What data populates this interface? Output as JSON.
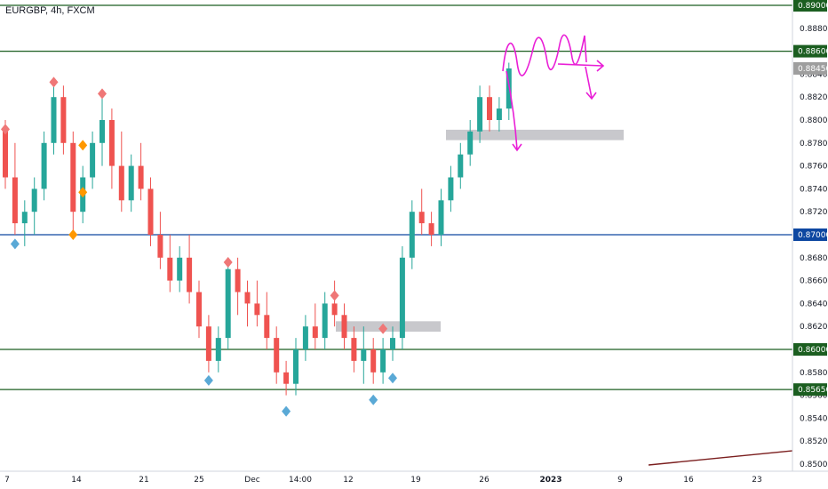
{
  "header": {
    "title": "EURGBP, 4h, FXCM"
  },
  "colors": {
    "up": "#26a69a",
    "down": "#ef5350",
    "support_resistance": "#1b5e20",
    "mid_level": "#0d47a1",
    "zone": "#c8c8cc",
    "annotation": "#e91ed6",
    "trendline": "#7b1f1f",
    "marker_red": "#ef7777",
    "marker_orange": "#ff9800",
    "marker_blue": "#5aa9d6",
    "price_badge": "#9e9e9e"
  },
  "chart_data": {
    "type": "candlestick",
    "title": "EURGBP, 4h, FXCM",
    "ylim": [
      0.85,
      0.89
    ],
    "y_ticks": [
      "0.85000",
      "0.85200",
      "0.85400",
      "0.85600",
      "0.85800",
      "0.86000",
      "0.86200",
      "0.86400",
      "0.86600",
      "0.86800",
      "0.87000",
      "0.87200",
      "0.87400",
      "0.87600",
      "0.87800",
      "0.88000",
      "0.88200",
      "0.88400",
      "0.88600",
      "0.88800",
      "0.89000"
    ],
    "x_ticks": [
      "7",
      "14",
      "21",
      "25",
      "Dec",
      "14:00",
      "12",
      "19",
      "26",
      "2023",
      "9",
      "16",
      "23"
    ],
    "levels": [
      {
        "price": 0.89,
        "label": "0.89000",
        "kind": "resistance"
      },
      {
        "price": 0.886,
        "label": "0.88600",
        "kind": "resistance"
      },
      {
        "price": 0.87,
        "label": "0.87000",
        "kind": "mid"
      },
      {
        "price": 0.86,
        "label": "0.86000",
        "kind": "support"
      },
      {
        "price": 0.8565,
        "label": "0.85650",
        "kind": "support"
      }
    ],
    "last_price": {
      "price": 0.8845,
      "label": "0.88450"
    },
    "zones": [
      {
        "from": "Dec 21",
        "to": "Jan 6",
        "low": 0.8784,
        "high": 0.879
      },
      {
        "from": "Dec 9",
        "to": "Dec 18",
        "low": 0.8617,
        "high": 0.8623
      }
    ],
    "candles": [
      [
        0.879,
        0.88,
        0.874,
        0.875
      ],
      [
        0.875,
        0.878,
        0.87,
        0.871
      ],
      [
        0.871,
        0.873,
        0.869,
        0.872
      ],
      [
        0.872,
        0.875,
        0.87,
        0.874
      ],
      [
        0.874,
        0.879,
        0.873,
        0.878
      ],
      [
        0.878,
        0.883,
        0.877,
        0.882
      ],
      [
        0.882,
        0.883,
        0.877,
        0.878
      ],
      [
        0.878,
        0.879,
        0.87,
        0.872
      ],
      [
        0.872,
        0.876,
        0.871,
        0.875
      ],
      [
        0.875,
        0.879,
        0.874,
        0.878
      ],
      [
        0.878,
        0.882,
        0.876,
        0.88
      ],
      [
        0.88,
        0.881,
        0.874,
        0.876
      ],
      [
        0.876,
        0.879,
        0.872,
        0.873
      ],
      [
        0.873,
        0.877,
        0.872,
        0.876
      ],
      [
        0.876,
        0.878,
        0.873,
        0.874
      ],
      [
        0.874,
        0.875,
        0.869,
        0.87
      ],
      [
        0.87,
        0.872,
        0.867,
        0.868
      ],
      [
        0.868,
        0.87,
        0.865,
        0.866
      ],
      [
        0.866,
        0.869,
        0.865,
        0.868
      ],
      [
        0.868,
        0.87,
        0.864,
        0.865
      ],
      [
        0.865,
        0.866,
        0.861,
        0.862
      ],
      [
        0.862,
        0.863,
        0.858,
        0.859
      ],
      [
        0.859,
        0.862,
        0.858,
        0.861
      ],
      [
        0.861,
        0.868,
        0.86,
        0.867
      ],
      [
        0.867,
        0.868,
        0.863,
        0.865
      ],
      [
        0.865,
        0.866,
        0.862,
        0.864
      ],
      [
        0.864,
        0.866,
        0.862,
        0.863
      ],
      [
        0.863,
        0.865,
        0.86,
        0.861
      ],
      [
        0.861,
        0.862,
        0.857,
        0.858
      ],
      [
        0.858,
        0.859,
        0.856,
        0.857
      ],
      [
        0.857,
        0.861,
        0.856,
        0.86
      ],
      [
        0.86,
        0.863,
        0.859,
        0.862
      ],
      [
        0.862,
        0.864,
        0.86,
        0.861
      ],
      [
        0.861,
        0.865,
        0.86,
        0.864
      ],
      [
        0.864,
        0.866,
        0.862,
        0.863
      ],
      [
        0.863,
        0.864,
        0.86,
        0.861
      ],
      [
        0.861,
        0.862,
        0.858,
        0.859
      ],
      [
        0.859,
        0.862,
        0.857,
        0.86
      ],
      [
        0.86,
        0.861,
        0.857,
        0.858
      ],
      [
        0.858,
        0.861,
        0.857,
        0.86
      ],
      [
        0.86,
        0.862,
        0.859,
        0.861
      ],
      [
        0.861,
        0.869,
        0.86,
        0.868
      ],
      [
        0.868,
        0.873,
        0.867,
        0.872
      ],
      [
        0.872,
        0.874,
        0.87,
        0.871
      ],
      [
        0.871,
        0.872,
        0.869,
        0.87
      ],
      [
        0.87,
        0.874,
        0.869,
        0.873
      ],
      [
        0.873,
        0.876,
        0.872,
        0.875
      ],
      [
        0.875,
        0.878,
        0.874,
        0.877
      ],
      [
        0.877,
        0.88,
        0.876,
        0.879
      ],
      [
        0.879,
        0.883,
        0.878,
        0.882
      ],
      [
        0.882,
        0.883,
        0.879,
        0.88
      ],
      [
        0.88,
        0.882,
        0.879,
        0.881
      ],
      [
        0.881,
        0.885,
        0.88,
        0.8845
      ]
    ],
    "markers": [
      {
        "i": 0,
        "price": 0.8792,
        "color": "marker_red"
      },
      {
        "i": 1,
        "price": 0.8692,
        "color": "marker_blue"
      },
      {
        "i": 5,
        "price": 0.8833,
        "color": "marker_red"
      },
      {
        "i": 7,
        "price": 0.87,
        "color": "marker_orange"
      },
      {
        "i": 8,
        "price": 0.8778,
        "color": "marker_orange"
      },
      {
        "i": 8,
        "price": 0.8737,
        "color": "marker_orange"
      },
      {
        "i": 10,
        "price": 0.8823,
        "color": "marker_red"
      },
      {
        "i": 21,
        "price": 0.8573,
        "color": "marker_blue"
      },
      {
        "i": 23,
        "price": 0.8676,
        "color": "marker_red"
      },
      {
        "i": 29,
        "price": 0.8546,
        "color": "marker_blue"
      },
      {
        "i": 34,
        "price": 0.8647,
        "color": "marker_red"
      },
      {
        "i": 38,
        "price": 0.8556,
        "color": "marker_blue"
      },
      {
        "i": 39,
        "price": 0.8618,
        "color": "marker_red"
      },
      {
        "i": 40,
        "price": 0.8575,
        "color": "marker_blue"
      }
    ]
  }
}
